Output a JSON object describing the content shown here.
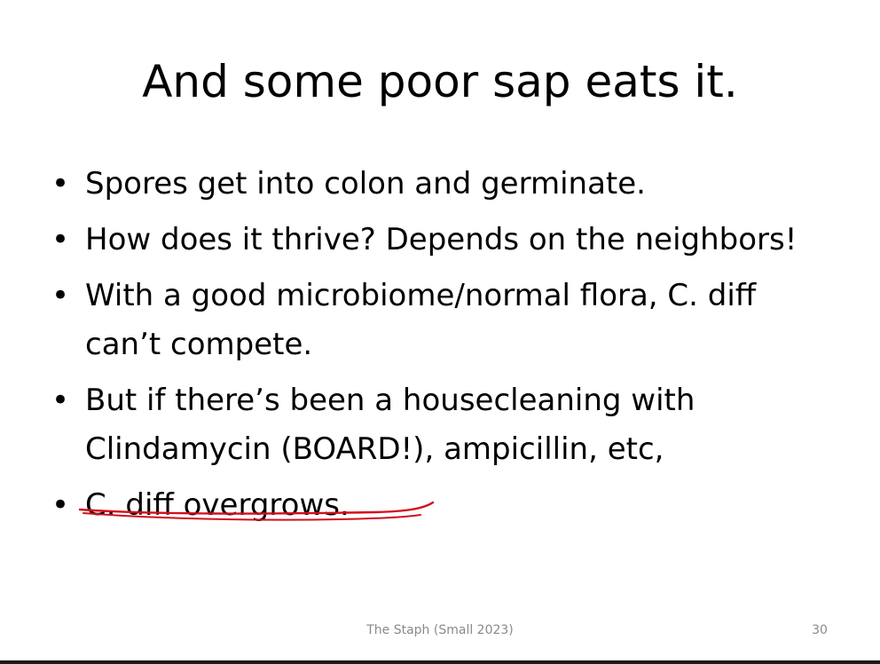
{
  "slide": {
    "title": "And some poor sap eats it.",
    "bullets": [
      {
        "symbol": "•",
        "text": "Spores get into colon and germinate."
      },
      {
        "symbol": "•",
        "text": "How does it thrive? Depends on the neighbors!"
      },
      {
        "symbol": "•",
        "text": "With a good microbiome/normal flora, C. diff can’t compete."
      },
      {
        "symbol": "•",
        "text": "But if there’s been a housecleaning with Clindamycin (BOARD!), ampicillin, etc,"
      },
      {
        "symbol": "•",
        "text": "C. diff overgrows."
      }
    ],
    "annotation": {
      "kind": "handwritten-underline",
      "color": "#d0101e"
    },
    "footer": {
      "center_text": "The Staph (Small 2023)",
      "page_number": "30"
    }
  }
}
